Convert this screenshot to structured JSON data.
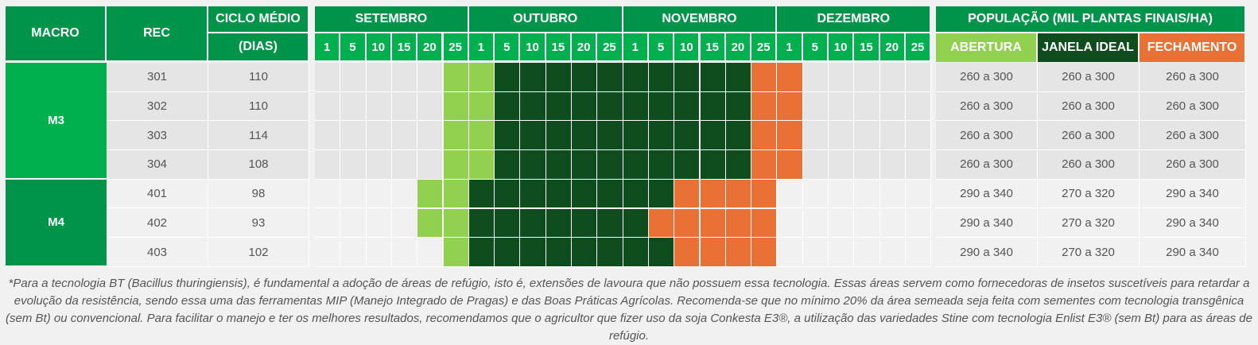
{
  "headers": {
    "macro": "MACRO",
    "rec": "REC",
    "ciclo_line1": "CICLO MÉDIO",
    "ciclo_line2": "(DIAS)",
    "months": [
      "SETEMBRO",
      "OUTUBRO",
      "NOVEMBRO",
      "DEZEMBRO"
    ],
    "days": [
      "1",
      "5",
      "10",
      "15",
      "20",
      "25"
    ],
    "populacao": "POPULAÇÃO (MIL PLANTAS FINAIS/HA)",
    "abertura": "ABERTURA",
    "janela": "JANELA IDEAL",
    "fechamento": "FECHAMENTO"
  },
  "colors": {
    "abertura": "#92d050",
    "janela": "#0f4d1f",
    "fechamento": "#ea7135",
    "m3": "#00b04f",
    "m4": "#00944a"
  },
  "rows": [
    {
      "macro": "M3",
      "rec": "301",
      "ciclo": "110",
      "abertura_range": "260 a 300",
      "janela_range": "260 a 300",
      "fechamento_range": "260 a 300",
      "start": 5,
      "green_start": 7,
      "orange_start": 17,
      "end": 19
    },
    {
      "macro": "M3",
      "rec": "302",
      "ciclo": "110",
      "abertura_range": "260 a 300",
      "janela_range": "260 a 300",
      "fechamento_range": "260 a 300",
      "start": 5,
      "green_start": 7,
      "orange_start": 17,
      "end": 19
    },
    {
      "macro": "M3",
      "rec": "303",
      "ciclo": "114",
      "abertura_range": "260 a 300",
      "janela_range": "260 a 300",
      "fechamento_range": "260 a 300",
      "start": 5,
      "green_start": 7,
      "orange_start": 17,
      "end": 19
    },
    {
      "macro": "M3",
      "rec": "304",
      "ciclo": "108",
      "abertura_range": "260 a 300",
      "janela_range": "260 a 300",
      "fechamento_range": "260 a 300",
      "start": 5,
      "green_start": 7,
      "orange_start": 17,
      "end": 19
    },
    {
      "macro": "M4",
      "rec": "401",
      "ciclo": "98",
      "abertura_range": "290 a 340",
      "janela_range": "270 a 320",
      "fechamento_range": "290 a 340",
      "start": 4,
      "green_start": 6,
      "orange_start": 14,
      "end": 18
    },
    {
      "macro": "M4",
      "rec": "402",
      "ciclo": "93",
      "abertura_range": "290 a 340",
      "janela_range": "270 a 320",
      "fechamento_range": "290 a 340",
      "start": 4,
      "green_start": 6,
      "orange_start": 13,
      "end": 18
    },
    {
      "macro": "M4",
      "rec": "403",
      "ciclo": "102",
      "abertura_range": "290 a 340",
      "janela_range": "270 a 320",
      "fechamento_range": "290 a 340",
      "start": 5,
      "green_start": 6,
      "orange_start": 14,
      "end": 18
    }
  ],
  "macros": [
    {
      "label": "M3",
      "rows": 4
    },
    {
      "label": "M4",
      "rows": 3
    }
  ],
  "footnote": "*Para a tecnologia BT (Bacillus thuringiensis), é fundamental a adoção de áreas de refúgio, isto é, extensões de lavoura que não possuem essa tecnologia. Essas áreas servem como fornecedoras de insetos suscetíveis para retardar a evolução da resistência, sendo essa uma das ferramentas MIP (Manejo Integrado de Pragas) e das Boas Práticas Agrícolas. Recomenda-se que no mínimo 20% da área semeada seja feita com sementes com tecnologia transgênica (sem Bt) ou convencional. Para facilitar o manejo e ter os melhores resultados, recomendamos que o agricultor que fizer uso da soja Conkesta E3®, a utilização das variedades Stine com tecnologia Enlist E3® (sem Bt) para as áreas de refúgio."
}
